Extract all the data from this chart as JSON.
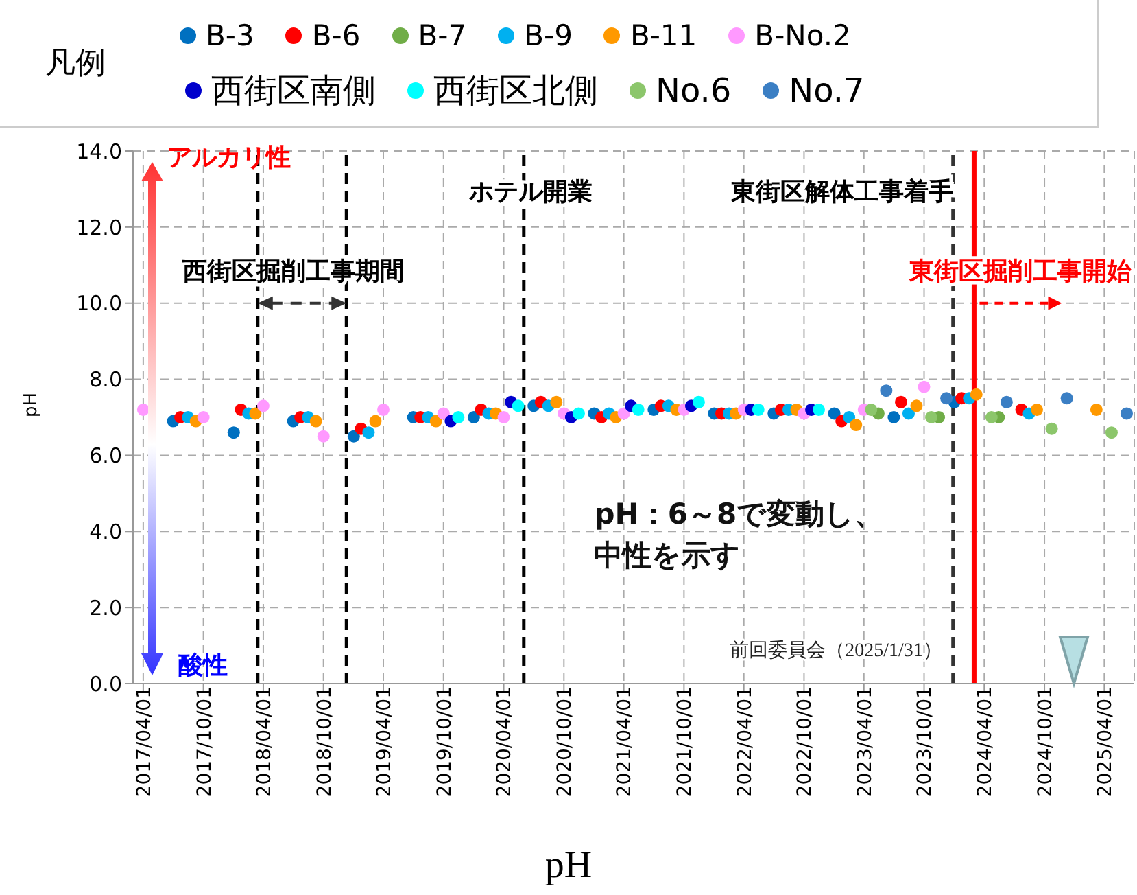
{
  "chart_data": {
    "type": "scatter",
    "xlabel": "pH",
    "ylabel": "pH",
    "legend_title": "凡例",
    "legend": "top",
    "marker": "circle",
    "grid": true,
    "xlim": [
      "2017-03-01",
      "2025-07-01"
    ],
    "xticks": [
      {
        "value": "2017-04-01",
        "label": "2017/04/01"
      },
      {
        "value": "2017-10-01",
        "label": "2017/10/01"
      },
      {
        "value": "2018-04-01",
        "label": "2018/04/01"
      },
      {
        "value": "2018-10-01",
        "label": "2018/10/01"
      },
      {
        "value": "2019-04-01",
        "label": "2019/04/01"
      },
      {
        "value": "2019-10-01",
        "label": "2019/10/01"
      },
      {
        "value": "2020-04-01",
        "label": "2020/04/01"
      },
      {
        "value": "2020-10-01",
        "label": "2020/10/01"
      },
      {
        "value": "2021-04-01",
        "label": "2021/04/01"
      },
      {
        "value": "2021-10-01",
        "label": "2021/10/01"
      },
      {
        "value": "2022-04-01",
        "label": "2022/04/01"
      },
      {
        "value": "2022-10-01",
        "label": "2022/10/01"
      },
      {
        "value": "2023-04-01",
        "label": "2023/04/01"
      },
      {
        "value": "2023-10-01",
        "label": "2023/10/01"
      },
      {
        "value": "2024-04-01",
        "label": "2024/04/01"
      },
      {
        "value": "2024-10-01",
        "label": "2024/10/01"
      },
      {
        "value": "2025-04-01",
        "label": "2025/04/01"
      }
    ],
    "ylim": [
      0,
      14
    ],
    "yticks": [
      {
        "value": 0,
        "label": "0.0"
      },
      {
        "value": 2,
        "label": "2.0"
      },
      {
        "value": 4,
        "label": "4.0"
      },
      {
        "value": 6,
        "label": "6.0"
      },
      {
        "value": 8,
        "label": "8.0"
      },
      {
        "value": 10,
        "label": "10.0"
      },
      {
        "value": 12,
        "label": "12.0"
      },
      {
        "value": 14,
        "label": "14.0"
      }
    ],
    "series": [
      {
        "name": "B-3",
        "color": "#0070c0",
        "x": [
          "2017-07-01",
          "2018-01-01",
          "2018-07-01",
          "2019-01-01",
          "2019-07-01",
          "2020-01-01",
          "2020-07-01",
          "2021-01-01",
          "2021-07-01",
          "2022-01-01",
          "2022-07-01",
          "2023-01-01",
          "2023-07-01",
          "2024-01-01"
        ],
        "values": [
          6.9,
          6.6,
          6.9,
          6.5,
          7.0,
          7.0,
          7.3,
          7.1,
          7.2,
          7.1,
          7.1,
          7.1,
          7.0,
          7.4
        ]
      },
      {
        "name": "B-6",
        "color": "#ff0000",
        "x": [
          "2017-07-23",
          "2018-01-23",
          "2018-07-23",
          "2019-01-23",
          "2019-07-23",
          "2020-01-23",
          "2020-07-23",
          "2021-01-23",
          "2021-07-23",
          "2022-01-23",
          "2022-07-23",
          "2023-01-23",
          "2023-07-23",
          "2024-01-23",
          "2024-07-23"
        ],
        "values": [
          7.0,
          7.2,
          7.0,
          6.7,
          7.0,
          7.2,
          7.4,
          7.0,
          7.3,
          7.1,
          7.2,
          6.9,
          7.4,
          7.5,
          7.2
        ]
      },
      {
        "name": "B-7",
        "color": "#70ad47",
        "x": [
          "2023-05-15",
          "2023-11-15",
          "2024-05-15"
        ],
        "values": [
          7.1,
          7.0,
          7.0
        ]
      },
      {
        "name": "B-9",
        "color": "#00b0f0",
        "x": [
          "2017-08-15",
          "2018-02-15",
          "2018-08-15",
          "2019-02-15",
          "2019-08-15",
          "2020-02-15",
          "2020-08-15",
          "2021-02-15",
          "2021-08-15",
          "2022-02-15",
          "2022-08-15",
          "2023-02-15",
          "2023-08-15",
          "2024-02-15",
          "2024-08-15"
        ],
        "values": [
          7.0,
          7.1,
          7.0,
          6.6,
          7.0,
          7.1,
          7.3,
          7.1,
          7.3,
          7.1,
          7.2,
          7.0,
          7.1,
          7.5,
          7.1
        ]
      },
      {
        "name": "B-11",
        "color": "#ff9900",
        "x": [
          "2017-09-08",
          "2018-03-08",
          "2018-09-08",
          "2019-03-08",
          "2019-09-08",
          "2020-03-08",
          "2020-09-08",
          "2021-03-08",
          "2021-09-08",
          "2022-03-08",
          "2022-09-08",
          "2023-03-08",
          "2023-09-08",
          "2024-03-08",
          "2024-09-08",
          "2025-03-08"
        ],
        "values": [
          6.9,
          7.1,
          6.9,
          6.9,
          6.9,
          7.1,
          7.4,
          7.0,
          7.2,
          7.1,
          7.2,
          6.8,
          7.3,
          7.6,
          7.2,
          7.2
        ]
      },
      {
        "name": "B-No.2",
        "color": "#ff99ff",
        "x": [
          "2017-04-01",
          "2017-10-01",
          "2018-04-01",
          "2018-10-01",
          "2019-04-01",
          "2019-10-01",
          "2020-04-01",
          "2020-10-01",
          "2021-04-01",
          "2021-10-01",
          "2022-04-01",
          "2022-10-01",
          "2023-04-01",
          "2023-10-01"
        ],
        "values": [
          7.2,
          7.0,
          7.3,
          6.5,
          7.2,
          7.1,
          7.0,
          7.1,
          7.1,
          7.2,
          7.2,
          7.1,
          7.2,
          7.8
        ]
      },
      {
        "name": "西街区南側",
        "color": "#0000cc",
        "x": [
          "2019-10-23",
          "2020-04-23",
          "2020-10-23",
          "2021-04-23",
          "2021-10-23",
          "2022-04-23",
          "2022-10-23"
        ],
        "values": [
          6.9,
          7.4,
          7.0,
          7.3,
          7.3,
          7.2,
          7.2
        ]
      },
      {
        "name": "西街区北側",
        "color": "#00ffff",
        "x": [
          "2019-11-15",
          "2020-05-15",
          "2020-11-15",
          "2021-05-15",
          "2021-11-15",
          "2022-05-15",
          "2022-11-15"
        ],
        "values": [
          7.0,
          7.3,
          7.1,
          7.2,
          7.4,
          7.2,
          7.2
        ]
      },
      {
        "name": "No.6",
        "color": "#8cc66b",
        "x": [
          "2023-04-23",
          "2023-10-23",
          "2024-04-23",
          "2024-10-23",
          "2025-04-23"
        ],
        "values": [
          7.2,
          7.0,
          7.0,
          6.7,
          6.6
        ]
      },
      {
        "name": "No.7",
        "color": "#3b7fc4",
        "x": [
          "2023-06-08",
          "2023-12-08",
          "2024-06-08",
          "2024-12-08",
          "2025-06-08"
        ],
        "values": [
          7.7,
          7.5,
          7.4,
          7.5,
          7.1
        ]
      }
    ],
    "ref_lines": [
      {
        "axis": "x",
        "value": "2018-03-15",
        "label": "西街区掘削工事期間",
        "color": "#000000",
        "line_style": "dashed"
      },
      {
        "axis": "x",
        "value": "2018-12-10",
        "color": "#000000",
        "line_style": "dashed"
      },
      {
        "axis": "x",
        "value": "2020-06-01",
        "label": "ホテル開業",
        "color": "#000000",
        "line_style": "dashed"
      },
      {
        "axis": "x",
        "value": "2023-12-28",
        "label": "東街区解体工事着手",
        "color": "#333333",
        "line_style": "dashed"
      },
      {
        "axis": "x",
        "value": "2024-03-01",
        "label": "東街区掘削工事開始",
        "color": "#ff0000",
        "line_style": "solid"
      }
    ],
    "annotations": [
      "アルカリ性",
      "酸性",
      "pH：6～8で変動し、中性を示す",
      "前回委員会（2025/1/31）"
    ]
  }
}
